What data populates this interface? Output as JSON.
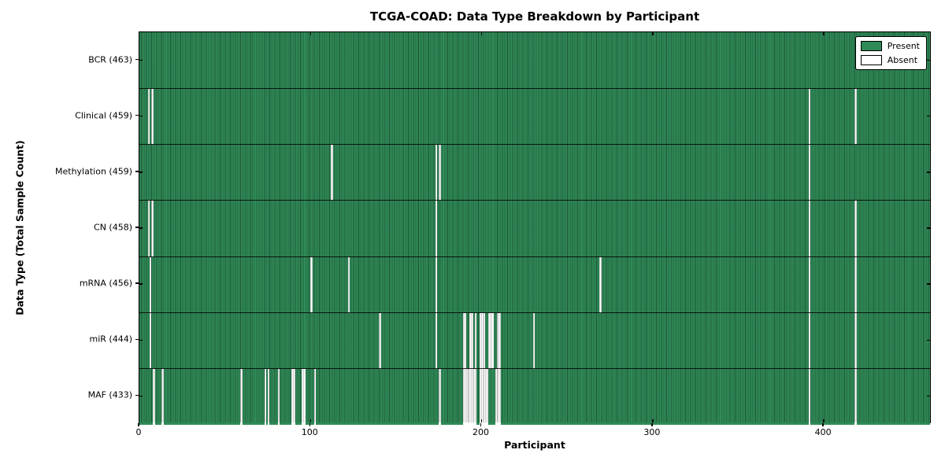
{
  "chart_data": {
    "type": "heatmap",
    "title": "TCGA-COAD: Data Type Breakdown by Participant",
    "xlabel": "Participant",
    "ylabel": "Data Type (Total Sample Count)",
    "x_ticks": [
      0,
      100,
      200,
      300,
      400
    ],
    "x_range": [
      0,
      463
    ],
    "n_participants": 463,
    "grid": false,
    "legend_position": "upper right",
    "legend": [
      {
        "name": "present",
        "label": "Present",
        "color": "#2e8b57"
      },
      {
        "name": "absent",
        "label": "Absent",
        "color": "#ffffff"
      }
    ],
    "colors": {
      "present": "#2e8b57",
      "absent": "#ffffff",
      "cell_edge": "#000000",
      "background": "#ffffff"
    },
    "rows": [
      {
        "label": "BCR (463)",
        "data_type": "BCR",
        "present_count": 463,
        "absent_participants": []
      },
      {
        "label": "Clinical (459)",
        "data_type": "Clinical",
        "present_count": 459,
        "absent_participants": [
          5,
          7,
          391,
          418
        ]
      },
      {
        "label": "Methylation (459)",
        "data_type": "Methylation",
        "present_count": 459,
        "absent_participants": [
          112,
          173,
          175,
          391
        ]
      },
      {
        "label": "CN (458)",
        "data_type": "CN",
        "present_count": 458,
        "absent_participants": [
          5,
          7,
          173,
          391,
          418
        ]
      },
      {
        "label": "mRNA (456)",
        "data_type": "mRNA",
        "present_count": 456,
        "absent_participants": [
          6,
          100,
          122,
          173,
          269,
          391,
          418
        ]
      },
      {
        "label": "miR (444)",
        "data_type": "miR",
        "present_count": 444,
        "absent_participants": [
          6,
          140,
          173,
          189,
          190,
          193,
          194,
          196,
          199,
          200,
          201,
          204,
          205,
          206,
          209,
          210,
          230,
          391,
          418
        ]
      },
      {
        "label": "MAF (433)",
        "data_type": "MAF",
        "present_count": 433,
        "absent_participants": [
          8,
          13,
          59,
          73,
          75,
          81,
          89,
          90,
          95,
          96,
          102,
          175,
          189,
          190,
          191,
          192,
          193,
          194,
          195,
          196,
          199,
          200,
          201,
          202,
          203,
          208,
          209,
          210,
          391,
          418
        ]
      }
    ]
  }
}
